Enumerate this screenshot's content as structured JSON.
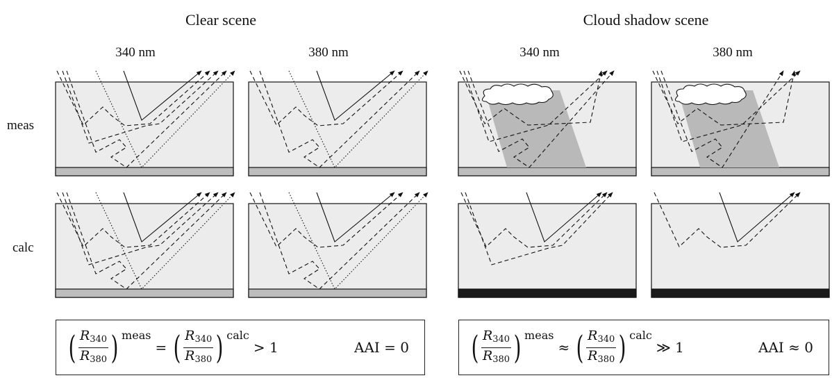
{
  "titles": {
    "clear": "Clear scene",
    "shadow": "Cloud shadow scene"
  },
  "wavelengths": {
    "w1": "340 nm",
    "w2": "380 nm"
  },
  "rows": {
    "meas": "meas",
    "calc": "calc"
  },
  "equations": {
    "left": {
      "num": "R",
      "num_sub": "340",
      "den": "R",
      "den_sub": "380",
      "sup1": "meas",
      "op": "=",
      "sup2": "calc",
      "rhs": "> 1",
      "aai": "AAI = 0"
    },
    "right": {
      "num": "R",
      "num_sub": "340",
      "den": "R",
      "den_sub": "380",
      "sup1": "meas",
      "op": "≈",
      "sup2": "calc",
      "rhs": "≫ 1",
      "aai": "AAI ≈ 0"
    }
  },
  "colors": {
    "atmosphere": "#ececec",
    "surface_grey": "#bdbdbd",
    "surface_dark": "#1a1a1a",
    "shadow": "#b9b9b9",
    "cloud": "#ffffff",
    "line": "#111111"
  }
}
